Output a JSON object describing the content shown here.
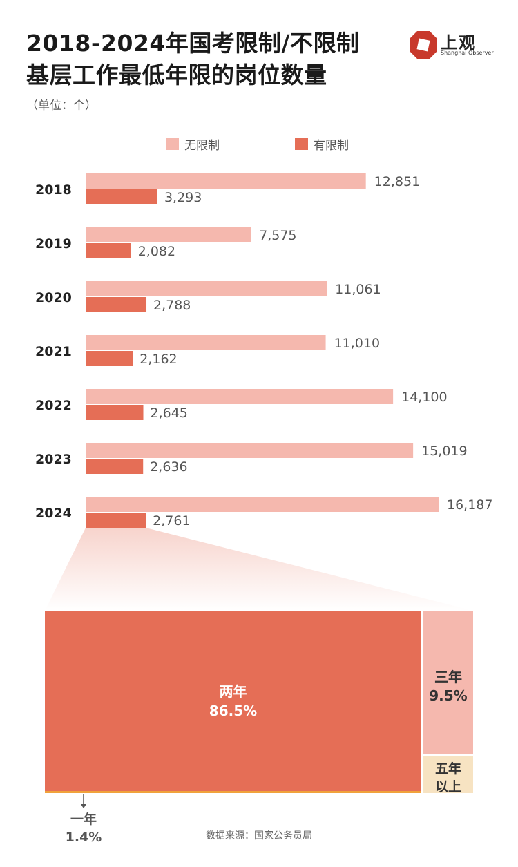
{
  "title_line1": "2018-2024年国考限制/不限制",
  "title_line2": "基层工作最低年限的岗位数量",
  "unit": "（单位：个）",
  "logo": {
    "cn": "上观",
    "en": "Shanghai Observer"
  },
  "colors": {
    "unlimited": "#f5b8ae",
    "limited": "#e56e56",
    "five_plus": "#f7e3c2",
    "one_year": "#f0a23c",
    "text": "#555555"
  },
  "chart_data": [
    {
      "type": "bar",
      "orientation": "horizontal",
      "categories": [
        "2018",
        "2019",
        "2020",
        "2021",
        "2022",
        "2023",
        "2024"
      ],
      "series": [
        {
          "name": "无限制",
          "values": [
            12851,
            7575,
            11061,
            11010,
            14100,
            15019,
            16187
          ],
          "labels": [
            "12,851",
            "7,575",
            "11,061",
            "11,010",
            "14,100",
            "15,019",
            "16,187"
          ]
        },
        {
          "name": "有限制",
          "values": [
            3293,
            2082,
            2788,
            2162,
            2645,
            2636,
            2761
          ],
          "labels": [
            "3,293",
            "2,082",
            "2,788",
            "2,162",
            "2,645",
            "2,636",
            "2,761"
          ]
        }
      ],
      "legend_position": "top-center"
    },
    {
      "type": "treemap",
      "parent_category": "2024 有限制",
      "items": [
        {
          "label": "两年",
          "value": 86.5,
          "display": "86.5%"
        },
        {
          "label": "三年",
          "value": 9.5,
          "display": "9.5%"
        },
        {
          "label": "五年以上",
          "label_lines": [
            "五年",
            "以上"
          ],
          "value": 2.6
        },
        {
          "label": "一年",
          "value": 1.4,
          "display": "1.4%"
        }
      ]
    }
  ],
  "source": "数据来源：国家公务员局"
}
